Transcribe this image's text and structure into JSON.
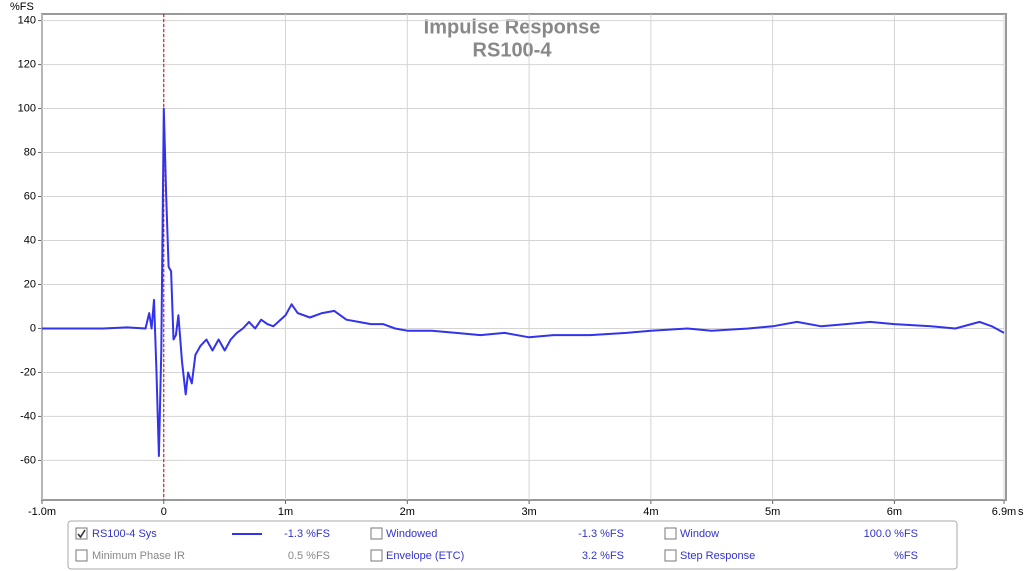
{
  "chart_data": {
    "type": "line",
    "title": "Impulse Response",
    "subtitle": "RS100-4",
    "y_label": "%FS",
    "x_unit": "s",
    "x": [
      -1,
      -0.5,
      -0.3,
      -0.15,
      -0.12,
      -0.1,
      -0.08,
      -0.06,
      -0.04,
      -0.02,
      0,
      0.02,
      0.04,
      0.06,
      0.08,
      0.1,
      0.12,
      0.15,
      0.18,
      0.2,
      0.23,
      0.26,
      0.3,
      0.35,
      0.4,
      0.45,
      0.5,
      0.55,
      0.6,
      0.65,
      0.7,
      0.75,
      0.8,
      0.85,
      0.9,
      1.0,
      1.05,
      1.1,
      1.2,
      1.3,
      1.4,
      1.5,
      1.6,
      1.7,
      1.8,
      1.9,
      2.0,
      2.2,
      2.4,
      2.6,
      2.8,
      3.0,
      3.2,
      3.5,
      3.8,
      4.0,
      4.3,
      4.5,
      4.8,
      5.0,
      5.2,
      5.4,
      5.6,
      5.8,
      6.0,
      6.3,
      6.5,
      6.7,
      6.8,
      6.9
    ],
    "series": [
      {
        "name": "RS100-4 Sys",
        "color": "#3333ee",
        "values": [
          0,
          0,
          0.5,
          0,
          7,
          0,
          13,
          -20,
          -58,
          -10,
          100,
          60,
          28,
          26,
          -5,
          -3,
          6,
          -15,
          -30,
          -20,
          -25,
          -12,
          -8,
          -5,
          -10,
          -5,
          -10,
          -5,
          -2,
          0,
          3,
          0,
          4,
          2,
          1,
          6,
          11,
          7,
          5,
          7,
          8,
          4,
          3,
          2,
          2,
          0,
          -1,
          -1,
          -2,
          -3,
          -2,
          -4,
          -3,
          -3,
          -2,
          -1,
          0,
          -1,
          0,
          1,
          3,
          1,
          2,
          3,
          2,
          1,
          0,
          3,
          1,
          -2
        ]
      }
    ],
    "xlim": [
      -1,
      6.9
    ],
    "xticks": [
      {
        "value": -1,
        "label": "-1.0m"
      },
      0,
      {
        "value": 1,
        "label": "1m"
      },
      {
        "value": 2,
        "label": "2m"
      },
      {
        "value": 3,
        "label": "3m"
      },
      {
        "value": 4,
        "label": "4m"
      },
      {
        "value": 5,
        "label": "5m"
      },
      {
        "value": 6,
        "label": "6m"
      },
      {
        "value": 6.9,
        "label": "6.9m"
      }
    ],
    "ylim": [
      -78,
      143
    ],
    "yticks": [
      -60,
      -40,
      -20,
      0,
      20,
      40,
      60,
      80,
      100,
      120,
      140
    ],
    "grid": true
  },
  "legend_panel": {
    "items": [
      {
        "label": "RS100-4 Sys",
        "value": "-1.3 %FS",
        "checked": true,
        "color": "#3333cc",
        "sample": true
      },
      {
        "label": "Windowed",
        "value": "-1.3 %FS",
        "checked": false,
        "color": "#3333cc"
      },
      {
        "label": "Window",
        "value": "100.0 %FS",
        "checked": false,
        "color": "#3333cc"
      },
      {
        "label": "Minimum Phase IR",
        "value": "0.5 %FS",
        "checked": false,
        "color": "#888888"
      },
      {
        "label": "Envelope (ETC)",
        "value": "3.2 %FS",
        "checked": false,
        "color": "#3333cc"
      },
      {
        "label": "Step Response",
        "value": "%FS",
        "checked": false,
        "color": "#3333cc"
      }
    ]
  }
}
